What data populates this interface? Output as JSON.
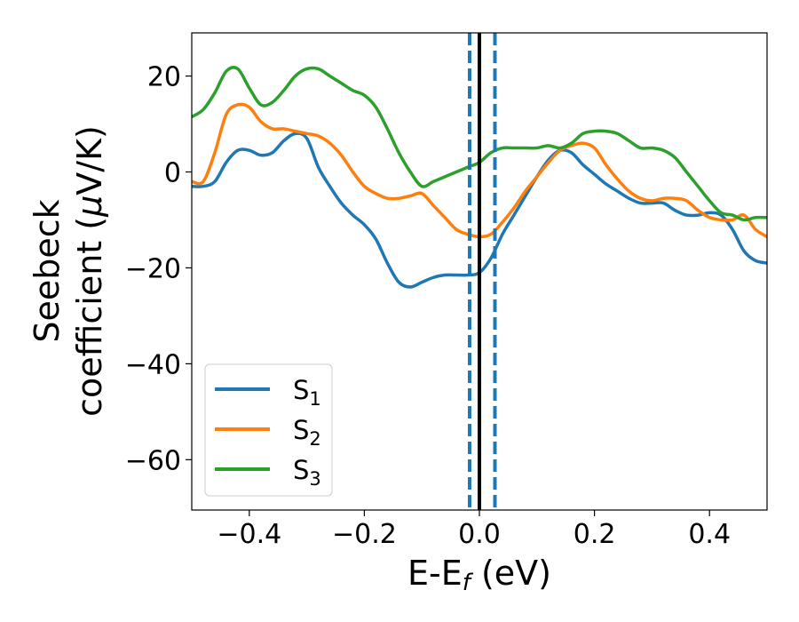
{
  "chart_data": {
    "type": "line",
    "xlabel": {
      "main": "E-E",
      "sub": "f",
      "tail": " (eV)"
    },
    "ylabel": {
      "line1": "Seebeck",
      "line2_prefix": "coefficient  (",
      "mu": "μ",
      "line2_suffix": "V/K)"
    },
    "xlim": [
      -0.5,
      0.5
    ],
    "ylim": [
      -70.5,
      29
    ],
    "xticks": [
      -0.4,
      -0.2,
      0.0,
      0.2,
      0.4
    ],
    "xtick_labels": [
      "−0.4",
      "−0.2",
      "0.0",
      "0.2",
      "0.4"
    ],
    "yticks": [
      20,
      0,
      -20,
      -40,
      -60
    ],
    "ytick_labels": [
      "20",
      "0",
      "−20",
      "−40",
      "−60"
    ],
    "grid": false,
    "legend_position": "lower-left",
    "vlines": [
      {
        "x": -0.017,
        "style": "dashed",
        "color": "#1f77b4"
      },
      {
        "x": 0.027,
        "style": "dashed",
        "color": "#1f77b4"
      },
      {
        "x": 0.0,
        "style": "solid",
        "color": "#000000"
      }
    ],
    "x": [
      -0.5,
      -0.48,
      -0.46,
      -0.44,
      -0.42,
      -0.4,
      -0.38,
      -0.36,
      -0.34,
      -0.32,
      -0.3,
      -0.28,
      -0.26,
      -0.24,
      -0.22,
      -0.2,
      -0.18,
      -0.16,
      -0.14,
      -0.12,
      -0.1,
      -0.08,
      -0.06,
      -0.04,
      -0.02,
      0.0,
      0.02,
      0.04,
      0.06,
      0.08,
      0.1,
      0.12,
      0.14,
      0.16,
      0.18,
      0.2,
      0.22,
      0.24,
      0.26,
      0.28,
      0.3,
      0.32,
      0.34,
      0.36,
      0.38,
      0.4,
      0.42,
      0.44,
      0.46,
      0.48,
      0.5
    ],
    "series": [
      {
        "name": "S",
        "sub": "1",
        "color": "#1f77b4",
        "values": [
          -3,
          -3,
          -2,
          2,
          4.5,
          4.5,
          3.5,
          4,
          6.5,
          8,
          7,
          1,
          -3,
          -6.5,
          -9,
          -11,
          -14,
          -19,
          -23,
          -24,
          -23,
          -22,
          -21.5,
          -21.5,
          -21.5,
          -21,
          -18,
          -13,
          -9,
          -5,
          -1,
          2.5,
          4.5,
          4,
          1.5,
          -0.5,
          -2.5,
          -4,
          -5.5,
          -6.5,
          -6.5,
          -6.5,
          -8,
          -9,
          -9,
          -8.5,
          -9,
          -12,
          -16.5,
          -18.5,
          -19
        ]
      },
      {
        "name": "S",
        "sub": "2",
        "color": "#ff7f0e",
        "values": [
          -2,
          -2,
          4,
          12,
          14,
          13.5,
          10.5,
          9,
          9,
          8.5,
          8,
          7.5,
          6,
          3.5,
          0,
          -3,
          -4.5,
          -5.5,
          -5.5,
          -5,
          -4.5,
          -7,
          -9.5,
          -12,
          -13,
          -13.5,
          -13,
          -10.5,
          -7.5,
          -4,
          -1,
          2,
          4.5,
          5.5,
          6,
          5,
          1.5,
          -1.5,
          -4,
          -5.5,
          -6,
          -5.5,
          -5.5,
          -6,
          -8,
          -9.5,
          -10,
          -10,
          -9,
          -12,
          -13.5
        ]
      },
      {
        "name": "S",
        "sub": "3",
        "color": "#2ca02c",
        "values": [
          11.5,
          13,
          16.5,
          21,
          21.5,
          17.5,
          14,
          14.5,
          17,
          20,
          21.5,
          21.5,
          20,
          18.5,
          17,
          16,
          13.5,
          9,
          4,
          0,
          -3,
          -2,
          -1,
          0,
          1,
          2,
          4,
          5,
          5,
          5,
          5,
          5.5,
          5,
          6,
          8,
          8.5,
          8.5,
          8,
          6.5,
          5,
          5,
          4.5,
          3,
          0,
          -3,
          -6,
          -8.5,
          -9,
          -10,
          -9.5,
          -9.5
        ]
      }
    ]
  }
}
